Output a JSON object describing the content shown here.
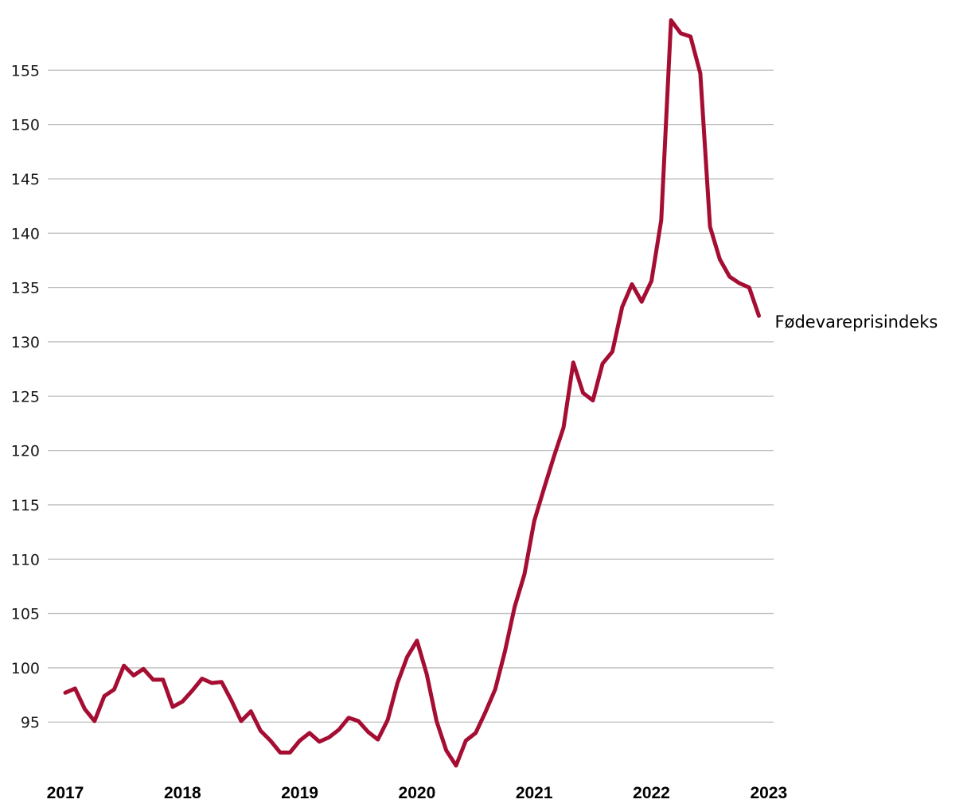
{
  "chart_data": {
    "type": "line",
    "x_start": "2017-01",
    "x": [
      "2017-01",
      "2017-02",
      "2017-03",
      "2017-04",
      "2017-05",
      "2017-06",
      "2017-07",
      "2017-08",
      "2017-09",
      "2017-10",
      "2017-11",
      "2017-12",
      "2018-01",
      "2018-02",
      "2018-03",
      "2018-04",
      "2018-05",
      "2018-06",
      "2018-07",
      "2018-08",
      "2018-09",
      "2018-10",
      "2018-11",
      "2018-12",
      "2019-01",
      "2019-02",
      "2019-03",
      "2019-04",
      "2019-05",
      "2019-06",
      "2019-07",
      "2019-08",
      "2019-09",
      "2019-10",
      "2019-11",
      "2019-12",
      "2020-01",
      "2020-02",
      "2020-03",
      "2020-04",
      "2020-05",
      "2020-06",
      "2020-07",
      "2020-08",
      "2020-09",
      "2020-10",
      "2020-11",
      "2020-12",
      "2021-01",
      "2021-02",
      "2021-03",
      "2021-04",
      "2021-05",
      "2021-06",
      "2021-07",
      "2021-08",
      "2021-09",
      "2021-10",
      "2021-11",
      "2021-12",
      "2022-01",
      "2022-02",
      "2022-03",
      "2022-04",
      "2022-05",
      "2022-06",
      "2022-07",
      "2022-08",
      "2022-09",
      "2022-10",
      "2022-11",
      "2022-12"
    ],
    "series": [
      {
        "name": "Fødevareprisindeks",
        "color": "#a50d33",
        "values": [
          97.7,
          98.1,
          96.2,
          95.1,
          97.4,
          98.0,
          100.2,
          99.3,
          99.9,
          98.9,
          98.9,
          96.4,
          96.9,
          97.9,
          99.0,
          98.6,
          98.7,
          97.0,
          95.1,
          96.0,
          94.2,
          93.3,
          92.2,
          92.2,
          93.3,
          94.0,
          93.2,
          93.6,
          94.3,
          95.4,
          95.1,
          94.1,
          93.4,
          95.2,
          98.6,
          101.0,
          102.5,
          99.4,
          95.1,
          92.4,
          91.0,
          93.3,
          94.0,
          95.9,
          98.0,
          101.5,
          105.6,
          108.6,
          113.5,
          116.5,
          119.4,
          122.1,
          128.1,
          125.3,
          124.6,
          128.0,
          129.1,
          133.2,
          135.3,
          133.7,
          135.6,
          141.2,
          159.6,
          158.4,
          158.1,
          154.7,
          140.6,
          137.6,
          136.0,
          135.4,
          135.0,
          132.4
        ]
      }
    ],
    "x_tick_labels": [
      "2017",
      "2018",
      "2019",
      "2020",
      "2021",
      "2022",
      "2023"
    ],
    "y_ticks": [
      95,
      100,
      105,
      110,
      115,
      120,
      125,
      130,
      135,
      140,
      145,
      150,
      155
    ],
    "ylim": [
      90.7,
      160
    ],
    "grid": "horizontal",
    "title": "",
    "xlabel": "",
    "ylabel": ""
  }
}
